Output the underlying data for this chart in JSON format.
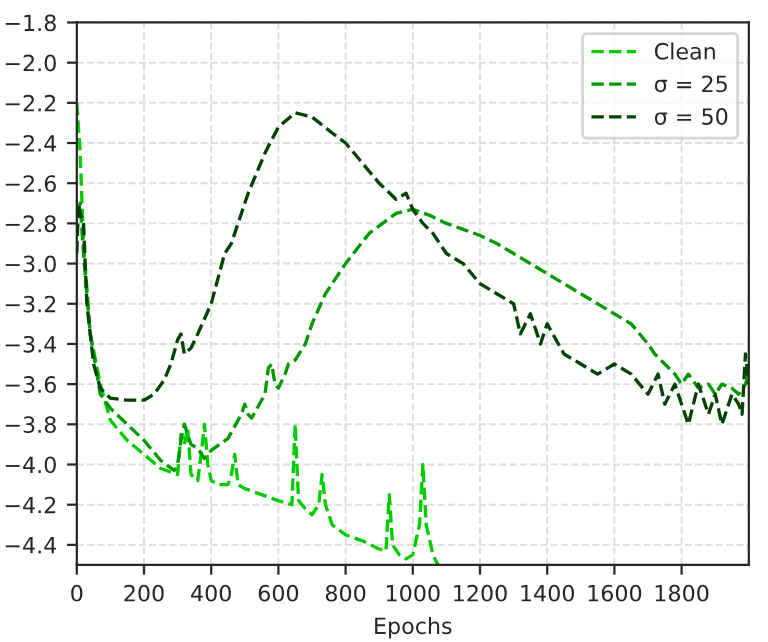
{
  "chart_data": {
    "type": "line",
    "xlabel": "Epochs",
    "xlim": [
      0,
      2000
    ],
    "ylim": [
      -4.5,
      -1.8
    ],
    "xticks": [
      0,
      200,
      400,
      600,
      800,
      1000,
      1200,
      1400,
      1600,
      1800
    ],
    "yticks": [
      {
        "value": -4.4,
        "label": "−4.4"
      },
      {
        "value": -4.2,
        "label": "−4.2"
      },
      {
        "value": -4.0,
        "label": "−4.0"
      },
      {
        "value": -3.8,
        "label": "−3.8"
      },
      {
        "value": -3.6,
        "label": "−3.6"
      },
      {
        "value": -3.4,
        "label": "−3.4"
      },
      {
        "value": -3.2,
        "label": "−3.2"
      },
      {
        "value": -3.0,
        "label": "−3.0"
      },
      {
        "value": -2.8,
        "label": "−2.8"
      },
      {
        "value": -2.6,
        "label": "−2.6"
      },
      {
        "value": -2.4,
        "label": "−2.4"
      },
      {
        "value": -2.2,
        "label": "−2.2"
      },
      {
        "value": -2.0,
        "label": "−2.0"
      },
      {
        "value": -1.8,
        "label": "−1.8"
      }
    ],
    "grid": true,
    "legend": "top right",
    "line_style": "dashed",
    "marker": "none",
    "series": [
      {
        "name": "Clean",
        "color": "#00cc00",
        "x": [
          0,
          10,
          20,
          40,
          70,
          100,
          150,
          200,
          250,
          300,
          310,
          320,
          330,
          340,
          360,
          370,
          380,
          390,
          400,
          420,
          450,
          460,
          470,
          480,
          500,
          550,
          600,
          640,
          645,
          650,
          655,
          660,
          680,
          700,
          720,
          730,
          740,
          760,
          800,
          850,
          900,
          920,
          930,
          940,
          960,
          980,
          1000,
          1020,
          1030,
          1040,
          1060,
          1075
        ],
        "values": [
          -2.2,
          -2.45,
          -2.9,
          -3.35,
          -3.6,
          -3.78,
          -3.88,
          -3.95,
          -4.02,
          -4.05,
          -3.85,
          -3.9,
          -3.82,
          -4.05,
          -4.08,
          -3.95,
          -3.8,
          -4.0,
          -4.08,
          -4.1,
          -4.1,
          -4.05,
          -3.95,
          -4.1,
          -4.12,
          -4.15,
          -4.18,
          -4.2,
          -4.0,
          -3.8,
          -4.0,
          -4.18,
          -4.22,
          -4.25,
          -4.2,
          -4.05,
          -4.2,
          -4.3,
          -4.35,
          -4.38,
          -4.42,
          -4.43,
          -4.15,
          -4.4,
          -4.45,
          -4.47,
          -4.45,
          -4.3,
          -4.0,
          -4.3,
          -4.45,
          -4.5
        ]
      },
      {
        "name": "σ = 25",
        "color": "#009900",
        "x": [
          0,
          10,
          20,
          40,
          70,
          100,
          150,
          200,
          250,
          290,
          300,
          310,
          320,
          330,
          340,
          360,
          380,
          400,
          450,
          490,
          500,
          510,
          520,
          560,
          570,
          580,
          590,
          600,
          620,
          630,
          650,
          680,
          700,
          740,
          800,
          870,
          950,
          1000,
          1050,
          1100,
          1150,
          1200,
          1250,
          1300,
          1350,
          1400,
          1450,
          1500,
          1550,
          1600,
          1650,
          1700,
          1720,
          1750,
          1780,
          1800,
          1820,
          1850,
          1880,
          1900,
          1920,
          1950,
          1970,
          1990,
          2000
        ],
        "values": [
          -2.75,
          -2.7,
          -2.95,
          -3.35,
          -3.65,
          -3.72,
          -3.8,
          -3.88,
          -3.98,
          -4.03,
          -4.0,
          -3.88,
          -3.8,
          -3.85,
          -3.9,
          -3.92,
          -3.97,
          -3.93,
          -3.87,
          -3.75,
          -3.7,
          -3.75,
          -3.77,
          -3.65,
          -3.52,
          -3.5,
          -3.6,
          -3.62,
          -3.55,
          -3.5,
          -3.48,
          -3.4,
          -3.3,
          -3.15,
          -3.0,
          -2.85,
          -2.75,
          -2.73,
          -2.76,
          -2.8,
          -2.83,
          -2.86,
          -2.9,
          -2.95,
          -3.0,
          -3.05,
          -3.1,
          -3.15,
          -3.2,
          -3.25,
          -3.3,
          -3.4,
          -3.45,
          -3.5,
          -3.55,
          -3.6,
          -3.55,
          -3.62,
          -3.6,
          -3.65,
          -3.6,
          -3.62,
          -3.65,
          -3.6,
          -3.55
        ]
      },
      {
        "name": "σ = 50",
        "color": "#004400",
        "x": [
          0,
          5,
          10,
          20,
          30,
          50,
          70,
          100,
          150,
          200,
          230,
          260,
          280,
          300,
          310,
          320,
          340,
          360,
          400,
          440,
          460,
          480,
          510,
          560,
          600,
          650,
          700,
          760,
          800,
          850,
          900,
          950,
          980,
          1000,
          1030,
          1060,
          1100,
          1150,
          1200,
          1250,
          1300,
          1320,
          1350,
          1380,
          1400,
          1450,
          1500,
          1550,
          1600,
          1650,
          1700,
          1730,
          1750,
          1780,
          1800,
          1820,
          1850,
          1880,
          1900,
          1920,
          1950,
          1970,
          1980,
          1990,
          2000
        ],
        "values": [
          -2.95,
          -2.7,
          -2.75,
          -2.8,
          -3.2,
          -3.5,
          -3.62,
          -3.67,
          -3.68,
          -3.68,
          -3.65,
          -3.58,
          -3.5,
          -3.38,
          -3.35,
          -3.45,
          -3.42,
          -3.35,
          -3.2,
          -2.95,
          -2.9,
          -2.8,
          -2.65,
          -2.45,
          -2.32,
          -2.25,
          -2.27,
          -2.35,
          -2.4,
          -2.5,
          -2.6,
          -2.68,
          -2.65,
          -2.73,
          -2.8,
          -2.85,
          -2.95,
          -3.0,
          -3.1,
          -3.15,
          -3.2,
          -3.35,
          -3.25,
          -3.4,
          -3.3,
          -3.45,
          -3.5,
          -3.55,
          -3.5,
          -3.55,
          -3.65,
          -3.55,
          -3.7,
          -3.6,
          -3.7,
          -3.8,
          -3.6,
          -3.75,
          -3.65,
          -3.8,
          -3.65,
          -3.7,
          -3.75,
          -3.45,
          -3.6
        ]
      }
    ]
  }
}
